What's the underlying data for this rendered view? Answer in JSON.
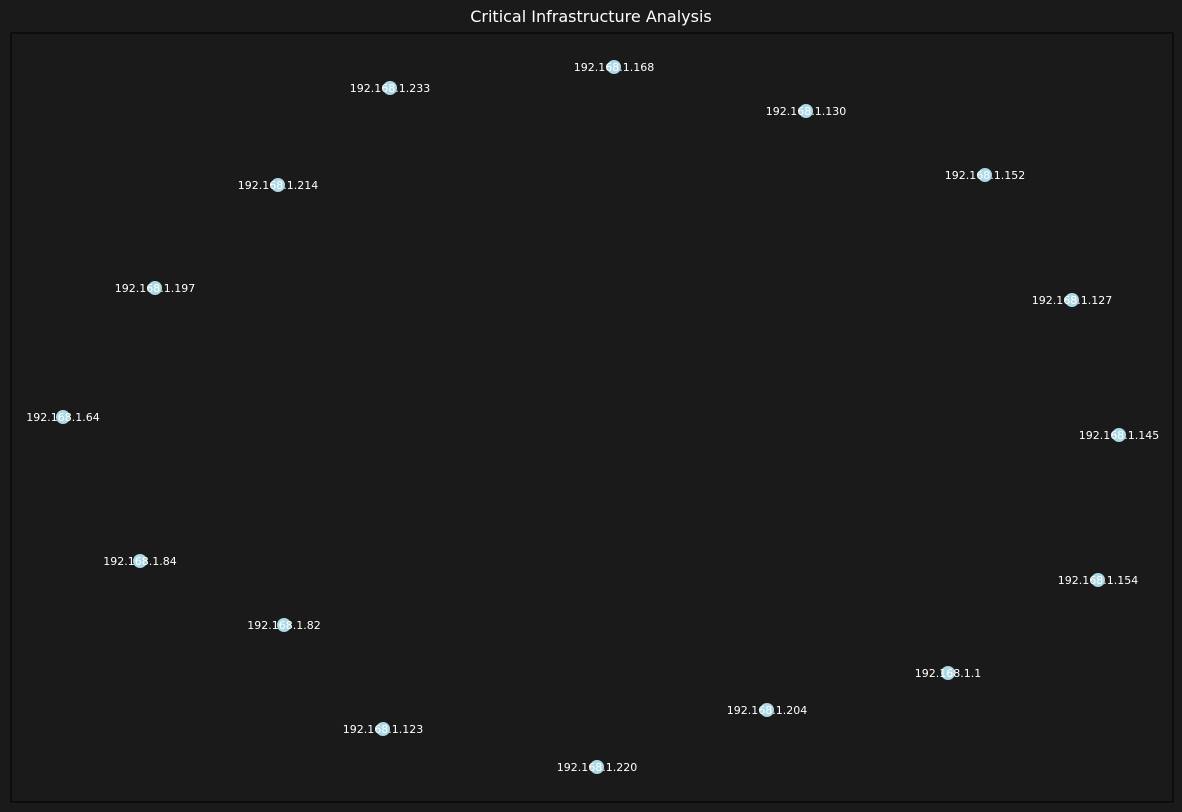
{
  "title": "Critical Infrastructure Analysis",
  "colors": {
    "background": "#1a1a1a",
    "frame": "#000000",
    "node_fill": "#add8e6",
    "label": "#ffffff"
  },
  "nodes": [
    {
      "label": "192.168.1.168"
    },
    {
      "label": "192.168.1.233"
    },
    {
      "label": "192.168.1.130"
    },
    {
      "label": "192.168.1.214"
    },
    {
      "label": "192.168.1.152"
    },
    {
      "label": "192.168.1.197"
    },
    {
      "label": "192.168.1.127"
    },
    {
      "label": "192.168.1.64"
    },
    {
      "label": "192.168.1.145"
    },
    {
      "label": "192.168.1.84"
    },
    {
      "label": "192.168.1.154"
    },
    {
      "label": "192.168.1.82"
    },
    {
      "label": "192.168.1.1"
    },
    {
      "label": "192.168.1.204"
    },
    {
      "label": "192.168.1.123"
    },
    {
      "label": "192.168.1.220"
    }
  ]
}
